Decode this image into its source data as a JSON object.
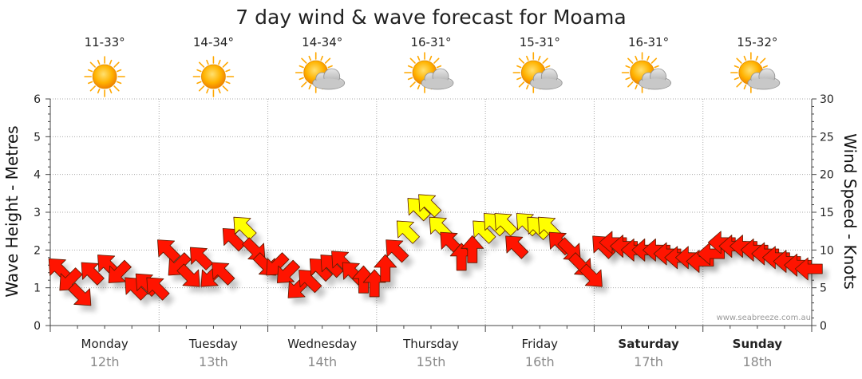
{
  "title": "7 day wind & wave forecast for Moama",
  "credit": "www.seabreeze.com.au",
  "colors": {
    "strong": "#ff1400",
    "light": "#ffff00",
    "grid": "#aaaaaa",
    "axis": "#444444",
    "sun": "#ffa800",
    "cloud": "#bbbbbb"
  },
  "days": [
    {
      "name": "Monday",
      "date": "12th",
      "temp": "11-33°",
      "icon": "sun-icon",
      "bold": false
    },
    {
      "name": "Tuesday",
      "date": "13th",
      "temp": "14-34°",
      "icon": "sun-icon",
      "bold": false
    },
    {
      "name": "Wednesday",
      "date": "14th",
      "temp": "14-34°",
      "icon": "partly-cloudy-icon",
      "bold": false
    },
    {
      "name": "Thursday",
      "date": "15th",
      "temp": "16-31°",
      "icon": "partly-cloudy-icon",
      "bold": false
    },
    {
      "name": "Friday",
      "date": "16th",
      "temp": "15-31°",
      "icon": "partly-cloudy-icon",
      "bold": false
    },
    {
      "name": "Saturday",
      "date": "17th",
      "temp": "16-31°",
      "icon": "partly-cloudy-icon",
      "bold": true
    },
    {
      "name": "Sunday",
      "date": "18th",
      "temp": "15-32°",
      "icon": "partly-cloudy-icon",
      "bold": true
    }
  ],
  "chart_data": {
    "type": "line",
    "title": "7 day wind & wave forecast for Moama",
    "ylabel": "Wave Height - Metres",
    "y2label": "Wind Speed - Knots",
    "ylim": [
      0,
      6
    ],
    "y2lim": [
      0,
      30
    ],
    "yticks": [
      0,
      1,
      2,
      3,
      4,
      5,
      6
    ],
    "y2ticks": [
      0,
      5,
      10,
      15,
      20,
      25,
      30
    ],
    "grid": true,
    "series": [
      {
        "name": "Wind Speed (knots) with direction",
        "x_days": [
          0.0,
          0.1,
          0.2,
          0.3,
          0.45,
          0.55,
          0.7,
          0.8,
          0.9,
          1.0,
          1.1,
          1.2,
          1.3,
          1.4,
          1.5,
          1.6,
          1.7,
          1.8,
          1.9,
          2.0,
          2.1,
          2.2,
          2.3,
          2.4,
          2.5,
          2.6,
          2.7,
          2.8,
          2.9,
          3.0,
          3.1,
          3.2,
          3.3,
          3.4,
          3.5,
          3.6,
          3.7,
          3.8,
          3.9,
          4.0,
          4.1,
          4.2,
          4.3,
          4.4,
          4.5,
          4.6,
          4.7,
          4.8,
          4.9,
          5.0,
          5.1,
          5.2,
          5.3,
          5.4,
          5.5,
          5.6,
          5.7,
          5.8,
          5.9,
          6.0,
          6.1,
          6.2,
          6.3,
          6.4,
          6.5,
          6.6,
          6.7,
          6.8,
          6.9
        ],
        "values": [
          7.5,
          6,
          4,
          7,
          8,
          7,
          5,
          5.5,
          5,
          10,
          8,
          6.5,
          9,
          6.5,
          7,
          11.5,
          13,
          10,
          8,
          8,
          7,
          5,
          6,
          7.5,
          8,
          8.5,
          7,
          6,
          5.5,
          7.5,
          10,
          12.5,
          15.5,
          16,
          13,
          11,
          9,
          10,
          12.5,
          13.5,
          13.5,
          10.5,
          13.5,
          13,
          13,
          11,
          10,
          8,
          6.5,
          10.5,
          11,
          10.5,
          10,
          10,
          10,
          9.5,
          9,
          9,
          8.5,
          9.5,
          11,
          10.5,
          10.5,
          10,
          9.5,
          9,
          8.5,
          8,
          7.5
        ],
        "direction_deg": [
          315,
          225,
          135,
          315,
          315,
          225,
          315,
          315,
          315,
          315,
          225,
          135,
          315,
          225,
          315,
          315,
          315,
          135,
          135,
          225,
          225,
          225,
          315,
          315,
          315,
          315,
          315,
          0,
          0,
          0,
          315,
          315,
          315,
          315,
          315,
          315,
          0,
          0,
          315,
          315,
          315,
          315,
          315,
          315,
          315,
          315,
          135,
          135,
          135,
          315,
          270,
          270,
          270,
          270,
          270,
          270,
          270,
          270,
          270,
          270,
          270,
          270,
          270,
          270,
          270,
          270,
          270,
          270,
          270
        ]
      }
    ]
  }
}
